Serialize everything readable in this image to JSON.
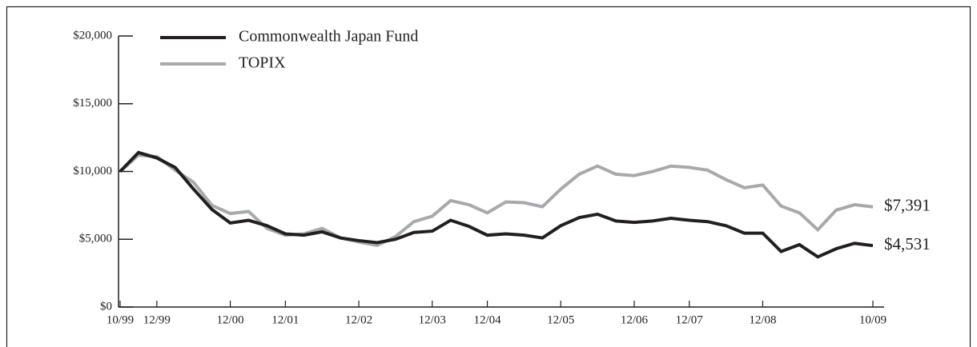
{
  "chart_data": {
    "type": "line",
    "categories": [
      "10/99",
      null,
      "12/99",
      null,
      null,
      null,
      "12/00",
      null,
      null,
      "12/01",
      null,
      null,
      null,
      "12/02",
      null,
      null,
      null,
      "12/03",
      null,
      null,
      "12/04",
      null,
      null,
      null,
      "12/05",
      null,
      null,
      null,
      "12/06",
      null,
      null,
      "12/07",
      null,
      null,
      null,
      "12/08",
      null,
      null,
      null,
      null,
      null,
      "10/09"
    ],
    "series": [
      {
        "name": "Commonwealth Japan Fund",
        "color": "#231f20",
        "end_label": "$4,531",
        "values": [
          10000,
          11400,
          11000,
          10300,
          8700,
          7200,
          6200,
          6400,
          6000,
          5400,
          5300,
          5550,
          5100,
          4900,
          4750,
          5000,
          5500,
          5600,
          6400,
          5950,
          5300,
          5400,
          5300,
          5100,
          6000,
          6600,
          6850,
          6350,
          6250,
          6350,
          6550,
          6400,
          6300,
          6000,
          5450,
          5450,
          4100,
          4600,
          3700,
          4300,
          4700,
          4531
        ]
      },
      {
        "name": "TOPIX",
        "color": "#a7a9ac",
        "end_label": "$7,391",
        "values": [
          10000,
          11200,
          11100,
          10100,
          9200,
          7500,
          6900,
          7050,
          5800,
          5300,
          5400,
          5800,
          5100,
          4800,
          4550,
          5200,
          6300,
          6700,
          7850,
          7550,
          6950,
          7750,
          7700,
          7400,
          8700,
          9800,
          10400,
          9800,
          9700,
          10000,
          10400,
          10300,
          10100,
          9400,
          8800,
          9000,
          7450,
          6950,
          5700,
          7150,
          7550,
          7391
        ]
      }
    ],
    "ylim": [
      0,
      20000
    ],
    "yticks": [
      {
        "value": 0,
        "label": "$0"
      },
      {
        "value": 5000,
        "label": "$5,000"
      },
      {
        "value": 10000,
        "label": "$10,000"
      },
      {
        "value": 15000,
        "label": "$15,000"
      },
      {
        "value": 20000,
        "label": "$20,000"
      }
    ],
    "legend": "top-left"
  }
}
